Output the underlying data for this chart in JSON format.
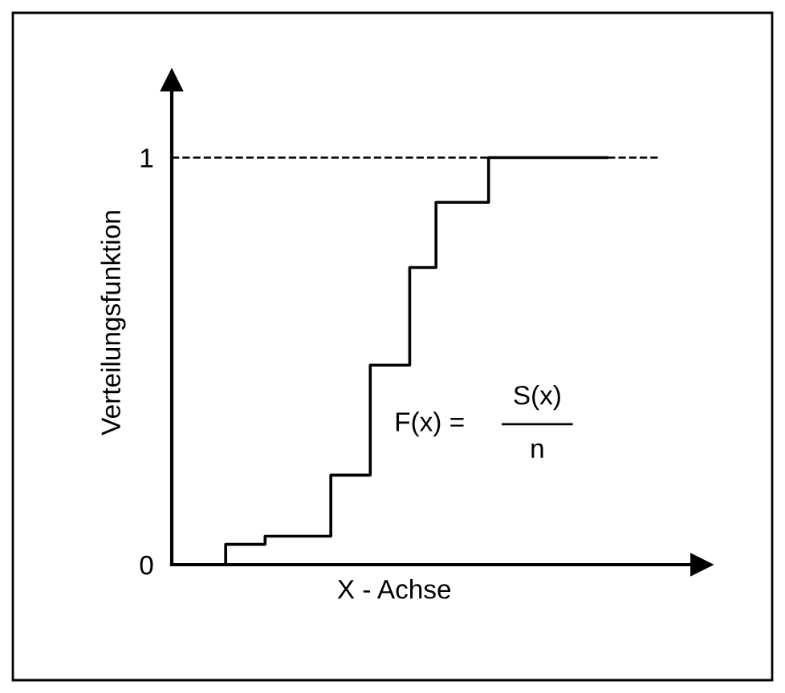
{
  "chart_data": {
    "type": "step",
    "xlabel": "X - Achse",
    "ylabel": "Verteilungsfunktion",
    "categories": [
      null,
      null,
      null,
      null,
      null,
      null,
      null,
      null,
      null,
      null,
      null,
      null,
      null,
      null,
      null,
      null,
      null,
      null,
      null,
      null,
      null,
      null,
      null,
      null,
      null,
      null,
      null,
      null,
      null,
      null,
      null
    ],
    "series": [
      {
        "color": "#000000",
        "values": [
          0,
          0.05,
          0.05,
          0.05,
          0.07,
          0.07,
          0.07,
          0.07,
          0.07,
          0.22,
          0.22,
          0.22,
          0.49,
          0.49,
          0.49,
          0.73,
          0.73,
          0.89,
          0.89,
          0.89,
          0.89,
          1,
          1,
          1,
          1,
          1,
          1,
          1,
          1,
          1,
          1
        ]
      }
    ],
    "ylim": [
      0,
      1.19
    ],
    "yticks": [
      0,
      1
    ],
    "tick_labels": "y",
    "ref_lines": [
      {
        "axis": "y",
        "value": 1,
        "color": "#000000",
        "line_style": "dashed"
      }
    ],
    "annotations": [
      "F(x) =",
      "S(x)",
      "n"
    ],
    "grid": false,
    "legend": false,
    "line_style": "solid",
    "marker": "none"
  }
}
